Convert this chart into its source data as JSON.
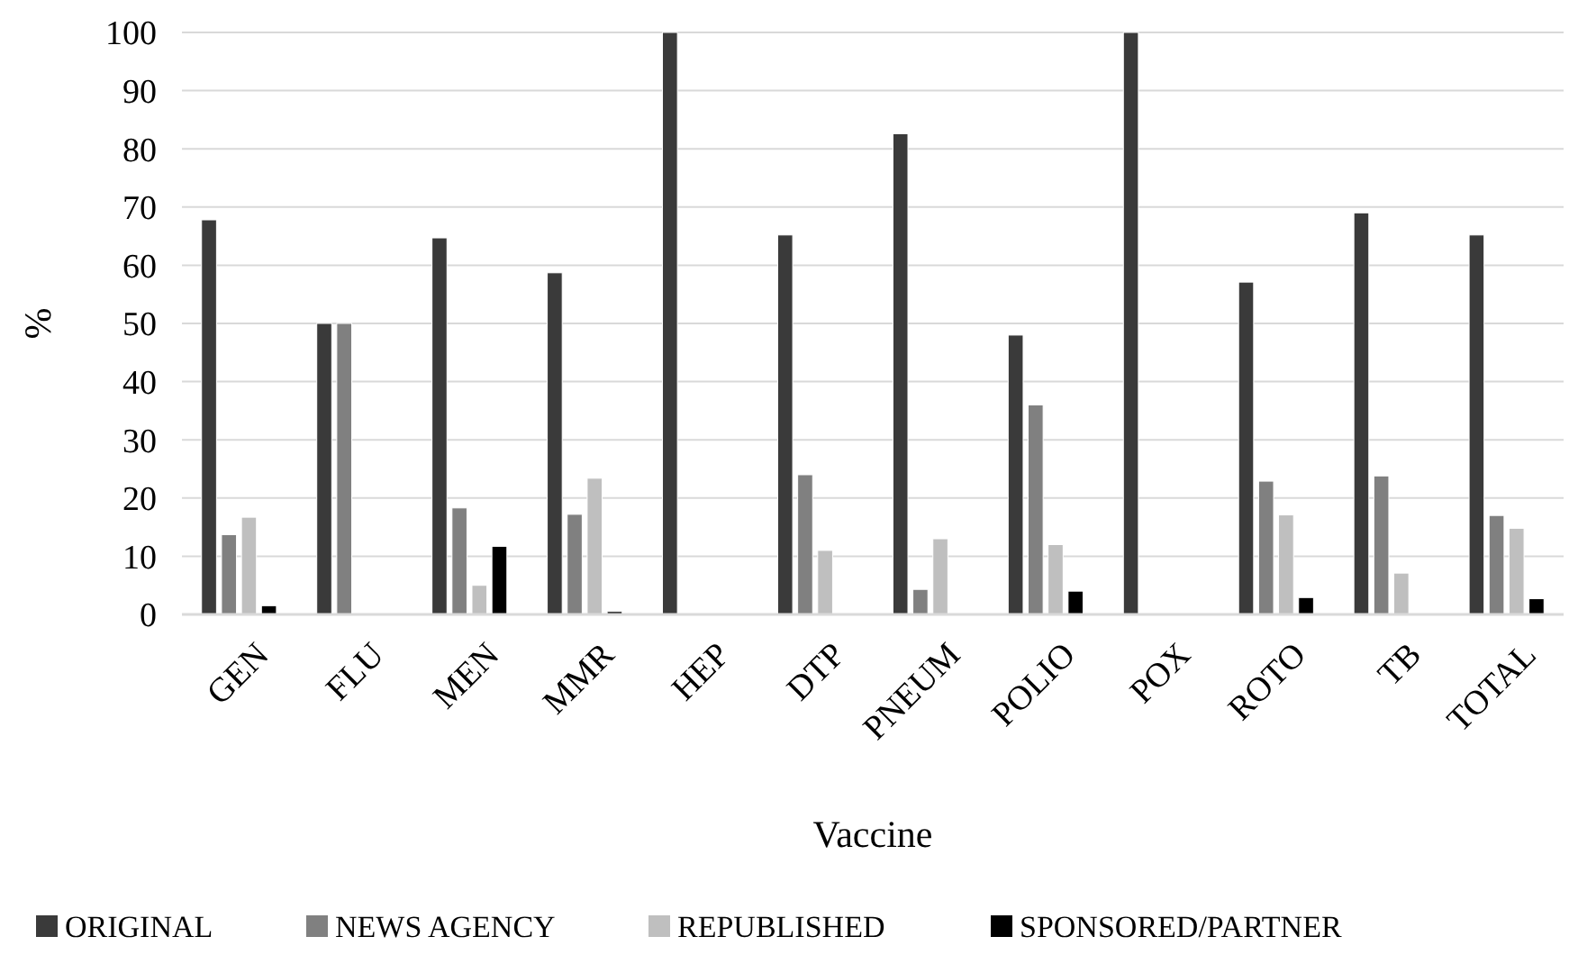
{
  "chart_data": {
    "type": "bar",
    "xlabel": "Vaccine",
    "ylabel": "%",
    "categories": [
      "GEN",
      "FLU",
      "MEN",
      "MMR",
      "HEP",
      "DTP",
      "PNEUM",
      "POLIO",
      "POX",
      "ROTO",
      "TB",
      "TOTAL"
    ],
    "series": [
      {
        "name": "ORIGINAL",
        "color": "#3a3a3a",
        "values": [
          67.8,
          50,
          64.7,
          58.7,
          100,
          65.2,
          82.6,
          48,
          100,
          57.1,
          69,
          65.2
        ]
      },
      {
        "name": "NEWS AGENCY",
        "color": "#808080",
        "values": [
          13.7,
          50,
          18.3,
          17.2,
          0,
          24,
          4.3,
          36,
          0,
          22.9,
          23.8,
          17
        ]
      },
      {
        "name": "REPUBLISHED",
        "color": "#bfbfbf",
        "values": [
          16.7,
          0,
          5,
          23.4,
          0,
          11,
          13,
          12,
          0,
          17.1,
          7.1,
          14.8
        ]
      },
      {
        "name": "SPONSORED/PARTNER",
        "color": "#000000",
        "values": [
          1.5,
          0,
          11.7,
          0.5,
          0,
          0,
          0,
          4,
          0,
          2.9,
          0,
          2.7
        ]
      }
    ],
    "ylim": [
      0,
      100
    ],
    "yticks": [
      0,
      10,
      20,
      30,
      40,
      50,
      60,
      70,
      80,
      90,
      100
    ],
    "grid": "y",
    "legend": "bottom"
  }
}
